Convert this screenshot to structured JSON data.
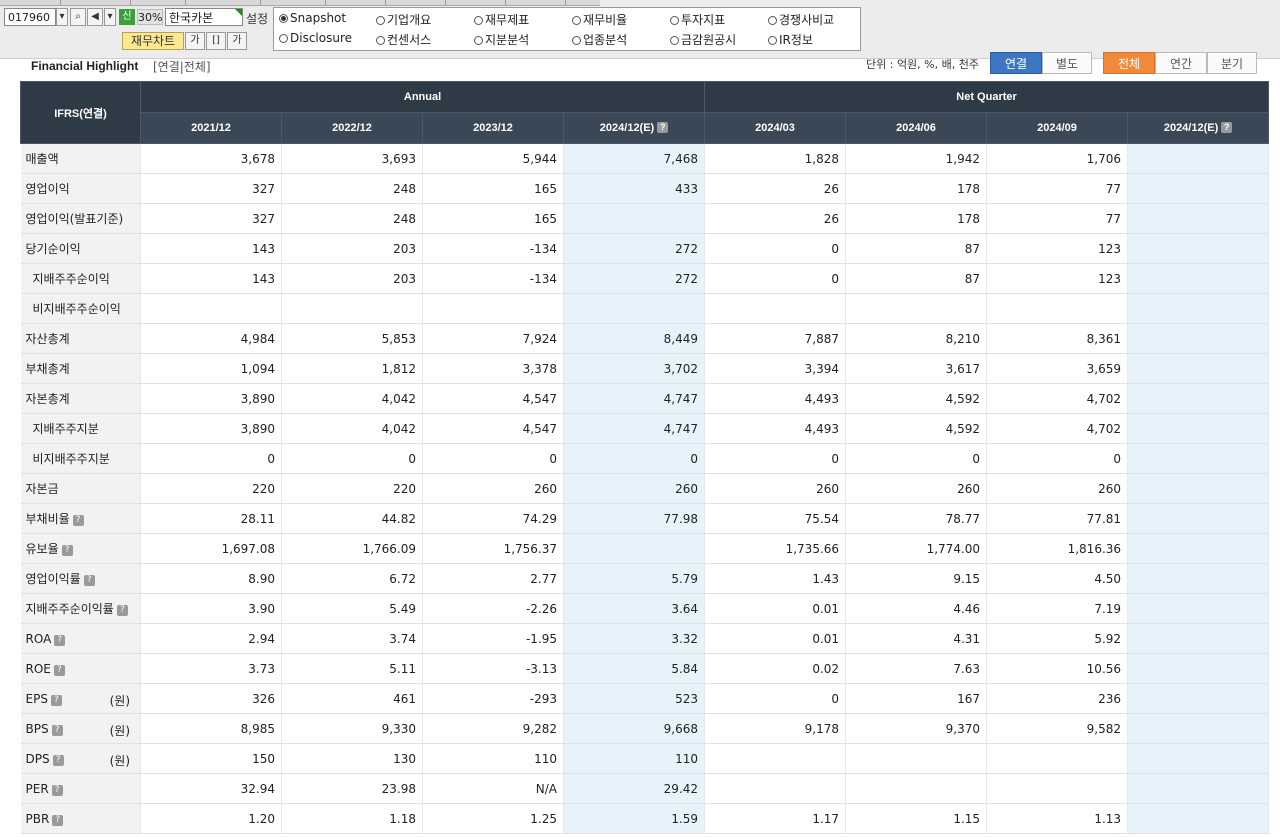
{
  "toolbar": {
    "stock_code": "017960",
    "sin_label": "신",
    "percent": "30%",
    "company_name": "한국카본",
    "setting_label": "설정",
    "chart_button": "재무차트",
    "font_icon_label": "가",
    "fit_icon_label": "[]",
    "font_up_icon_label": "가"
  },
  "menu_radios": [
    {
      "label": "Snapshot",
      "selected": true
    },
    {
      "label": "기업개요",
      "selected": false
    },
    {
      "label": "재무제표",
      "selected": false
    },
    {
      "label": "재무비율",
      "selected": false
    },
    {
      "label": "투자지표",
      "selected": false
    },
    {
      "label": "경쟁사비교",
      "selected": false
    },
    {
      "label": "Disclosure",
      "selected": false
    },
    {
      "label": "컨센서스",
      "selected": false
    },
    {
      "label": "지분분석",
      "selected": false
    },
    {
      "label": "업종분석",
      "selected": false
    },
    {
      "label": "금감원공시",
      "selected": false
    },
    {
      "label": "IR정보",
      "selected": false
    }
  ],
  "highlight": {
    "title": "Financial Highlight",
    "subtitle": "[연결|전체]",
    "unit": "단위 : 억원, %, 배, 천주",
    "toggle_consolidated": "연결",
    "toggle_separate": "별도",
    "toggle_all": "전체",
    "toggle_annual": "연간",
    "toggle_quarter": "분기"
  },
  "table": {
    "corner": "IFRS(연결)",
    "group_annual": "Annual",
    "group_quarter": "Net Quarter",
    "periods": [
      "2021/12",
      "2022/12",
      "2023/12",
      "2024/12(E)",
      "2024/03",
      "2024/06",
      "2024/09",
      "2024/12(E)"
    ],
    "rows": [
      {
        "label": "매출액",
        "values": [
          "3,678",
          "3,693",
          "5,944",
          "7,468",
          "1,828",
          "1,942",
          "1,706",
          ""
        ]
      },
      {
        "label": "영업이익",
        "values": [
          "327",
          "248",
          "165",
          "433",
          "26",
          "178",
          "77",
          ""
        ]
      },
      {
        "label": "영업이익(발표기준)",
        "values": [
          "327",
          "248",
          "165",
          "",
          "26",
          "178",
          "77",
          ""
        ]
      },
      {
        "label": "당기순이익",
        "values": [
          "143",
          "203",
          "-134",
          "272",
          "0",
          "87",
          "123",
          ""
        ]
      },
      {
        "label": "지배주주순이익",
        "values": [
          "143",
          "203",
          "-134",
          "272",
          "0",
          "87",
          "123",
          ""
        ]
      },
      {
        "label": "비지배주주순이익",
        "values": [
          "",
          "",
          "",
          "",
          "",
          "",
          "",
          ""
        ]
      },
      {
        "label": "자산총계",
        "values": [
          "4,984",
          "5,853",
          "7,924",
          "8,449",
          "7,887",
          "8,210",
          "8,361",
          ""
        ]
      },
      {
        "label": "부채총계",
        "values": [
          "1,094",
          "1,812",
          "3,378",
          "3,702",
          "3,394",
          "3,617",
          "3,659",
          ""
        ]
      },
      {
        "label": "자본총계",
        "values": [
          "3,890",
          "4,042",
          "4,547",
          "4,747",
          "4,493",
          "4,592",
          "4,702",
          ""
        ]
      },
      {
        "label": "지배주주지분",
        "values": [
          "3,890",
          "4,042",
          "4,547",
          "4,747",
          "4,493",
          "4,592",
          "4,702",
          ""
        ]
      },
      {
        "label": "비지배주주지분",
        "values": [
          "0",
          "0",
          "0",
          "0",
          "0",
          "0",
          "0",
          ""
        ]
      },
      {
        "label": "자본금",
        "values": [
          "220",
          "220",
          "260",
          "260",
          "260",
          "260",
          "260",
          ""
        ]
      },
      {
        "label": "부채비율",
        "values": [
          "28.11",
          "44.82",
          "74.29",
          "77.98",
          "75.54",
          "78.77",
          "77.81",
          ""
        ]
      },
      {
        "label": "유보율",
        "values": [
          "1,697.08",
          "1,766.09",
          "1,756.37",
          "",
          "1,735.66",
          "1,774.00",
          "1,816.36",
          ""
        ]
      },
      {
        "label": "영업이익률",
        "values": [
          "8.90",
          "6.72",
          "2.77",
          "5.79",
          "1.43",
          "9.15",
          "4.50",
          ""
        ]
      },
      {
        "label": "지배주주순이익률",
        "values": [
          "3.90",
          "5.49",
          "-2.26",
          "3.64",
          "0.01",
          "4.46",
          "7.19",
          ""
        ]
      },
      {
        "label": "ROA",
        "values": [
          "2.94",
          "3.74",
          "-1.95",
          "3.32",
          "0.01",
          "4.31",
          "5.92",
          ""
        ]
      },
      {
        "label": "ROE",
        "values": [
          "3.73",
          "5.11",
          "-3.13",
          "5.84",
          "0.02",
          "7.63",
          "10.56",
          ""
        ]
      },
      {
        "label": "EPS",
        "unit": "(원)",
        "values": [
          "326",
          "461",
          "-293",
          "523",
          "0",
          "167",
          "236",
          ""
        ]
      },
      {
        "label": "BPS",
        "unit": "(원)",
        "values": [
          "8,985",
          "9,330",
          "9,282",
          "9,668",
          "9,178",
          "9,370",
          "9,582",
          ""
        ]
      },
      {
        "label": "DPS",
        "unit": "(원)",
        "values": [
          "150",
          "130",
          "110",
          "110",
          "",
          "",
          "",
          ""
        ]
      },
      {
        "label": "PER",
        "values": [
          "32.94",
          "23.98",
          "N/A",
          "29.42",
          "",
          "",
          "",
          ""
        ]
      },
      {
        "label": "PBR",
        "values": [
          "1.20",
          "1.18",
          "1.25",
          "1.59",
          "1.17",
          "1.15",
          "1.13",
          ""
        ]
      }
    ]
  },
  "colors": {
    "header_bg": "#2f3a47",
    "estimate_bg": "#e7f3fa",
    "negative": "#e0141e",
    "toggle_blue": "#3d76c1",
    "toggle_orange": "#f28a3b"
  }
}
